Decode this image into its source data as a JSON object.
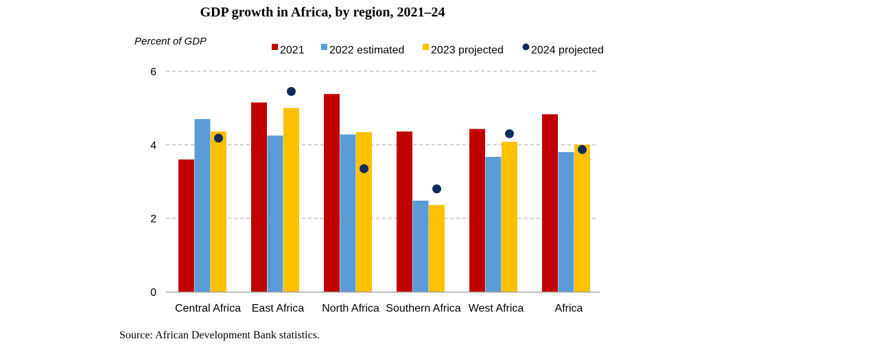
{
  "colors": {
    "s2021": "#c00000",
    "s2022": "#5b9bd5",
    "s2023": "#ffc000",
    "s2024": "#0f2d5a"
  },
  "chart_data": {
    "type": "bar",
    "title": "GDP growth in Africa, by region, 2021–24",
    "ylabel": "Percent of GDP",
    "xlabel": "",
    "source": "Source: African Development Bank statistics.",
    "categories": [
      "Central Africa",
      "East Africa",
      "North Africa",
      "Southern Africa",
      "West Africa",
      "Africa"
    ],
    "ylim": [
      0,
      6
    ],
    "yticks": [
      0,
      2,
      4,
      6
    ],
    "grid": true,
    "legend_position": "top",
    "series": [
      {
        "name": "2021",
        "kind": "bar",
        "color_key": "s2021",
        "values": [
          3.6,
          5.15,
          5.38,
          4.36,
          4.43,
          4.83
        ]
      },
      {
        "name": "2022 estimated",
        "kind": "bar",
        "color_key": "s2022",
        "values": [
          4.7,
          4.25,
          4.28,
          2.48,
          3.67,
          3.8
        ]
      },
      {
        "name": "2023 projected",
        "kind": "bar",
        "color_key": "s2023",
        "values": [
          4.36,
          5.0,
          4.34,
          2.36,
          4.08,
          4.0
        ]
      },
      {
        "name": "2024 projected",
        "kind": "marker",
        "color_key": "s2024",
        "values": [
          4.18,
          5.45,
          3.35,
          2.8,
          4.3,
          3.87
        ]
      }
    ]
  }
}
